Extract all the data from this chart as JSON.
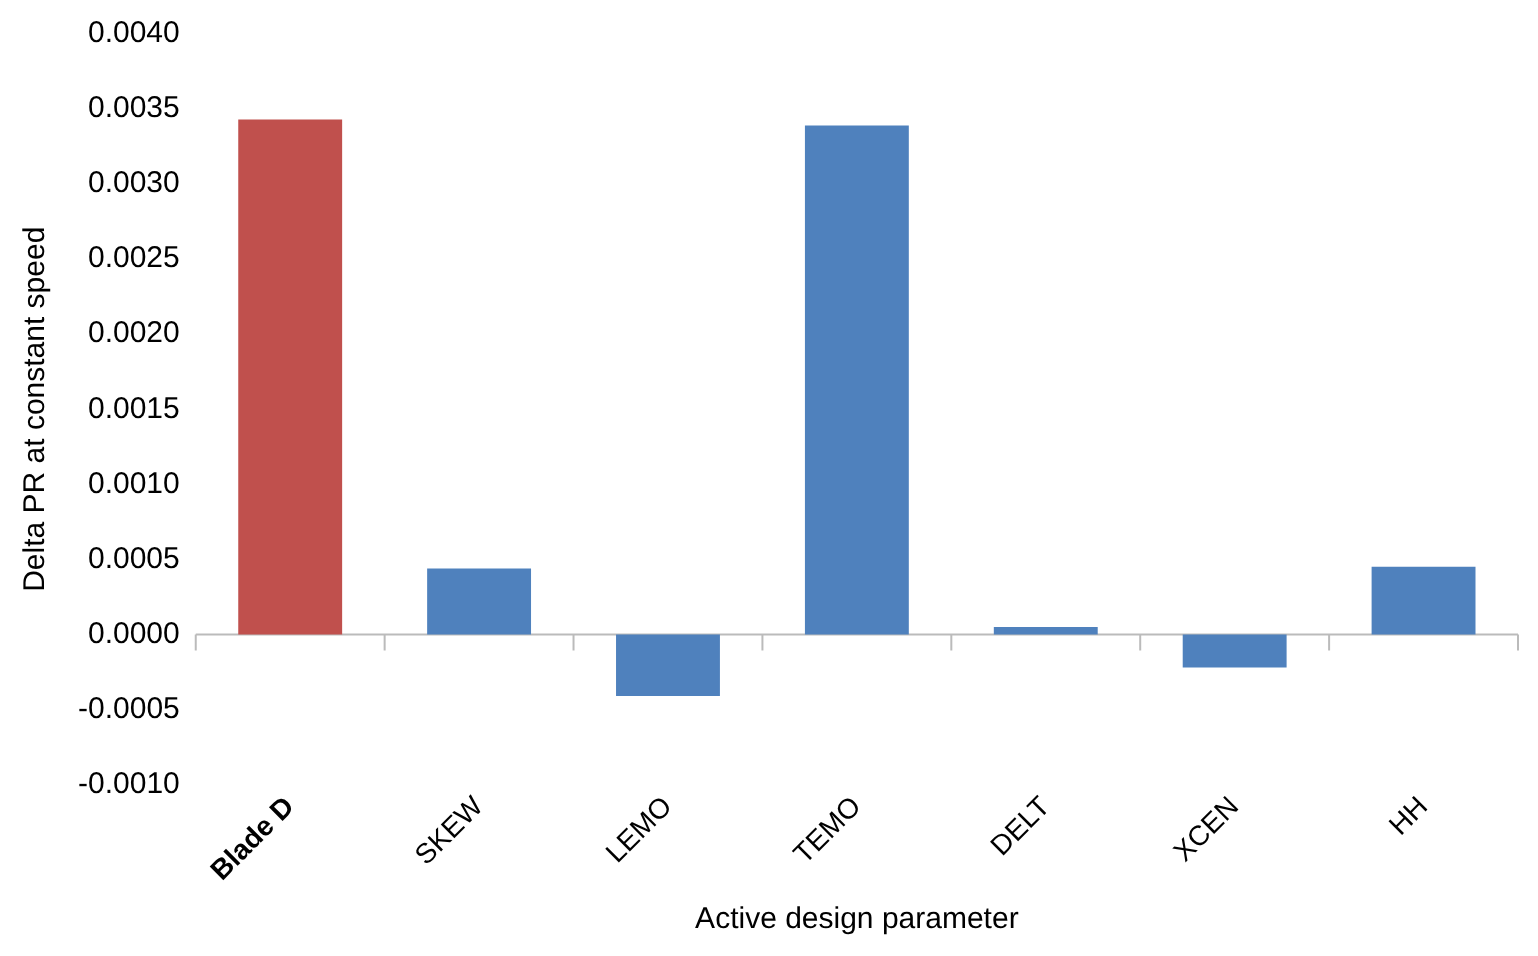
{
  "chart_data": {
    "type": "bar",
    "xlabel": "Active design parameter",
    "ylabel": "Delta PR at constant speed",
    "categories": [
      "Blade D",
      "SKEW",
      "LEMO",
      "TEMO",
      "DELT",
      "XCEN",
      "HH"
    ],
    "values": [
      0.00343,
      0.00044,
      -0.00041,
      0.00339,
      5e-05,
      -0.00022,
      0.00045
    ],
    "colors": [
      "#c0504d",
      "#4f81bd",
      "#4f81bd",
      "#4f81bd",
      "#4f81bd",
      "#4f81bd",
      "#4f81bd"
    ],
    "ylim": [
      -0.001,
      0.004
    ],
    "yticks": [
      {
        "value": -0.001,
        "label": "-0.0010"
      },
      {
        "value": -0.0005,
        "label": "-0.0005"
      },
      {
        "value": 0,
        "label": "0.0000"
      },
      {
        "value": 0.0005,
        "label": "0.0005"
      },
      {
        "value": 0.001,
        "label": "0.0010"
      },
      {
        "value": 0.0015,
        "label": "0.0015"
      },
      {
        "value": 0.002,
        "label": "0.0020"
      },
      {
        "value": 0.0025,
        "label": "0.0025"
      },
      {
        "value": 0.003,
        "label": "0.0030"
      },
      {
        "value": 0.0035,
        "label": "0.0035"
      },
      {
        "value": 0.004,
        "label": "0.0040"
      }
    ],
    "ref_lines": [
      {
        "axis": "y",
        "value": 0,
        "color": "#bbbbbb"
      }
    ],
    "grid": false
  }
}
